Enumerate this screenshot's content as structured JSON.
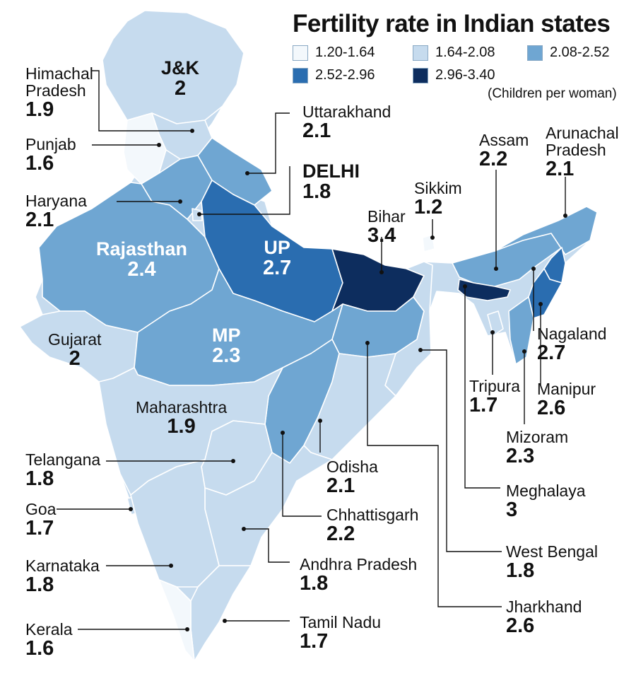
{
  "title": "Fertility rate in Indian states",
  "unit_note": "(Children per woman)",
  "legend": [
    {
      "range": "1.20-1.64",
      "color": "#f3f8fc"
    },
    {
      "range": "1.64-2.08",
      "color": "#c6dbee"
    },
    {
      "range": "2.08-2.52",
      "color": "#6fa6d2"
    },
    {
      "range": "2.52-2.96",
      "color": "#2a6db0"
    },
    {
      "range": "2.96-3.40",
      "color": "#0d2d5e"
    }
  ],
  "states": [
    {
      "name": "J&K",
      "value": "2",
      "color": "#c6dbee"
    },
    {
      "name": "Himachal Pradesh",
      "name_line1": "Himachal",
      "name_line2": "Pradesh",
      "value": "1.9",
      "color": "#c6dbee"
    },
    {
      "name": "Punjab",
      "value": "1.6",
      "color": "#f3f8fc"
    },
    {
      "name": "Haryana",
      "value": "2.1",
      "color": "#6fa6d2"
    },
    {
      "name": "Uttarakhand",
      "value": "2.1",
      "color": "#6fa6d2"
    },
    {
      "name": "DELHI",
      "value": "1.8",
      "color": "#c6dbee"
    },
    {
      "name": "Rajasthan",
      "value": "2.4",
      "color": "#6fa6d2"
    },
    {
      "name": "UP",
      "value": "2.7",
      "color": "#2a6db0"
    },
    {
      "name": "Bihar",
      "value": "3.4",
      "color": "#0d2d5e"
    },
    {
      "name": "Sikkim",
      "value": "1.2",
      "color": "#f3f8fc"
    },
    {
      "name": "Assam",
      "value": "2.2",
      "color": "#6fa6d2"
    },
    {
      "name": "Arunachal Pradesh",
      "name_line1": "Arunachal",
      "name_line2": "Pradesh",
      "value": "2.1",
      "color": "#6fa6d2"
    },
    {
      "name": "Gujarat",
      "value": "2",
      "color": "#c6dbee"
    },
    {
      "name": "MP",
      "value": "2.3",
      "color": "#6fa6d2"
    },
    {
      "name": "Nagaland",
      "value": "2.7",
      "color": "#2a6db0"
    },
    {
      "name": "Tripura",
      "value": "1.7",
      "color": "#c6dbee"
    },
    {
      "name": "Manipur",
      "value": "2.6",
      "color": "#2a6db0"
    },
    {
      "name": "Maharashtra",
      "value": "1.9",
      "color": "#c6dbee"
    },
    {
      "name": "Mizoram",
      "value": "2.3",
      "color": "#6fa6d2"
    },
    {
      "name": "Telangana",
      "value": "1.8",
      "color": "#c6dbee"
    },
    {
      "name": "Odisha",
      "value": "2.1",
      "color": "#6fa6d2"
    },
    {
      "name": "Meghalaya",
      "value": "3",
      "color": "#0d2d5e"
    },
    {
      "name": "Goa",
      "value": "1.7",
      "color": "#c6dbee"
    },
    {
      "name": "Chhattisgarh",
      "value": "2.2",
      "color": "#6fa6d2"
    },
    {
      "name": "West Bengal",
      "value": "1.8",
      "color": "#c6dbee"
    },
    {
      "name": "Karnataka",
      "value": "1.8",
      "color": "#c6dbee"
    },
    {
      "name": "Andhra Pradesh",
      "value": "1.8",
      "color": "#c6dbee"
    },
    {
      "name": "Jharkhand",
      "value": "2.6",
      "color": "#2a6db0"
    },
    {
      "name": "Kerala",
      "value": "1.6",
      "color": "#f3f8fc"
    },
    {
      "name": "Tamil Nadu",
      "value": "1.7",
      "color": "#c6dbee"
    }
  ]
}
